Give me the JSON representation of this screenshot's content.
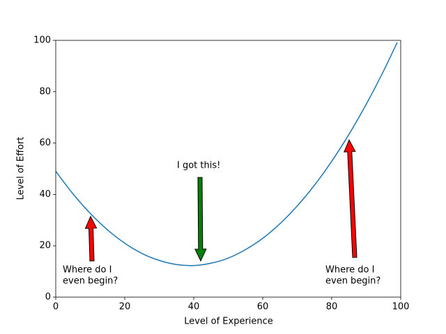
{
  "chart_data": {
    "type": "line",
    "x": [
      0,
      5,
      10,
      15,
      20,
      25,
      30,
      35,
      40,
      45,
      50,
      55,
      60,
      65,
      70,
      75,
      80,
      85,
      90,
      95,
      99
    ],
    "values": [
      49.0,
      40.2,
      32.6,
      26.2,
      21.0,
      17.0,
      14.3,
      12.7,
      12.3,
      13.2,
      15.2,
      18.5,
      22.9,
      28.6,
      35.5,
      43.6,
      52.9,
      63.4,
      75.1,
      88.0,
      99.2
    ],
    "color": "#1f77b4",
    "xlabel": "Level of Experience",
    "ylabel": "Level of Effort",
    "xlim": [
      0,
      100
    ],
    "ylim": [
      0,
      100
    ],
    "xticks": [
      0,
      20,
      40,
      60,
      80,
      100
    ],
    "yticks": [
      0,
      20,
      40,
      60,
      80,
      100
    ],
    "annotations": [
      {
        "lines": [
          "Where do I",
          "even begin?"
        ]
      },
      {
        "lines": [
          "I got this!"
        ]
      },
      {
        "lines": [
          "Where do I",
          "even begin?"
        ]
      }
    ]
  }
}
